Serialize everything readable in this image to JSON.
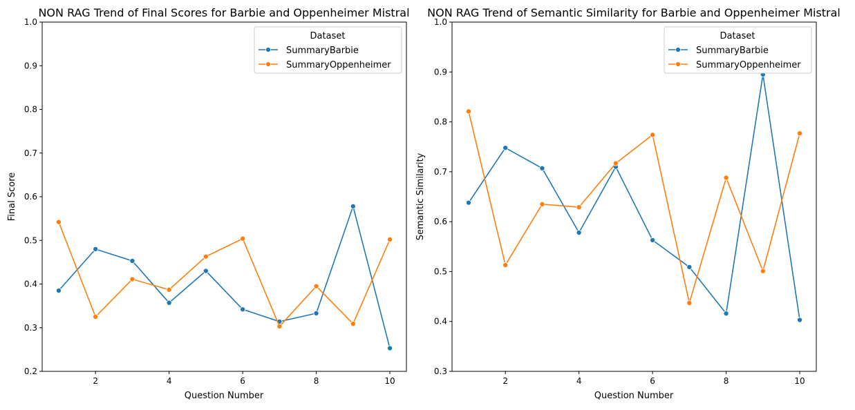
{
  "colors": {
    "barbie": "#1f77b4",
    "oppenheimer": "#ff7f0e"
  },
  "chart_data": [
    {
      "type": "line",
      "title": "NON RAG Trend of Final Scores for Barbie and Oppenheimer Mistral",
      "xlabel": "Question Number",
      "ylabel": "Final Score",
      "xlim": [
        0.55,
        10.45
      ],
      "ylim": [
        0.2,
        1.0
      ],
      "x_ticks": [
        2,
        4,
        6,
        8,
        10
      ],
      "x_tick_labels": [
        "2",
        "4",
        "6",
        "8",
        "10"
      ],
      "y_ticks": [
        0.2,
        0.3,
        0.4,
        0.5,
        0.6,
        0.7,
        0.8,
        0.9,
        1.0
      ],
      "y_tick_labels": [
        "0.2",
        "0.3",
        "0.4",
        "0.5",
        "0.6",
        "0.7",
        "0.8",
        "0.9",
        "1.0"
      ],
      "grid": false,
      "legend": {
        "title": "Dataset",
        "position": "top-right"
      },
      "x": [
        1,
        2,
        3,
        4,
        5,
        6,
        7,
        8,
        9,
        10
      ],
      "series": [
        {
          "name": "SummaryBarbie",
          "values": [
            0.385,
            0.48,
            0.453,
            0.357,
            0.43,
            0.342,
            0.314,
            0.333,
            0.578,
            0.253
          ]
        },
        {
          "name": "SummaryOppenheimer",
          "values": [
            0.542,
            0.325,
            0.411,
            0.387,
            0.463,
            0.504,
            0.303,
            0.395,
            0.309,
            0.502
          ]
        }
      ]
    },
    {
      "type": "line",
      "title": "NON RAG Trend of Semantic Similarity for Barbie and Oppenheimer Mistral",
      "xlabel": "Question Number",
      "ylabel": "Semantic Similarity",
      "xlim": [
        0.55,
        10.45
      ],
      "ylim": [
        0.3,
        1.0
      ],
      "x_ticks": [
        2,
        4,
        6,
        8,
        10
      ],
      "x_tick_labels": [
        "2",
        "4",
        "6",
        "8",
        "10"
      ],
      "y_ticks": [
        0.3,
        0.4,
        0.5,
        0.6,
        0.7,
        0.8,
        0.9,
        1.0
      ],
      "y_tick_labels": [
        "0.3",
        "0.4",
        "0.5",
        "0.6",
        "0.7",
        "0.8",
        "0.9",
        "1.0"
      ],
      "grid": false,
      "legend": {
        "title": "Dataset",
        "position": "top-right"
      },
      "x": [
        1,
        2,
        3,
        4,
        5,
        6,
        7,
        8,
        9,
        10
      ],
      "series": [
        {
          "name": "SummaryBarbie",
          "values": [
            0.638,
            0.748,
            0.707,
            0.578,
            0.71,
            0.563,
            0.509,
            0.416,
            0.895,
            0.403
          ]
        },
        {
          "name": "SummaryOppenheimer",
          "values": [
            0.821,
            0.513,
            0.635,
            0.629,
            0.717,
            0.774,
            0.437,
            0.688,
            0.501,
            0.777
          ]
        }
      ]
    }
  ]
}
